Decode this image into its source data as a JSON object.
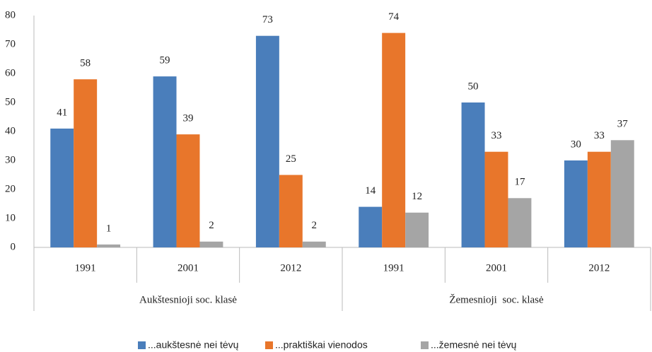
{
  "chart_data": {
    "type": "bar",
    "categories": [
      "1991",
      "2001",
      "2012",
      "1991",
      "2001",
      "2012"
    ],
    "groups": [
      {
        "label": "Aukštesnioji soc. klasė",
        "size": 3
      },
      {
        "label": "Žemesnioji  soc. klasė",
        "size": 3
      }
    ],
    "series": [
      {
        "name": "...aukštesnė nei tėvų",
        "color": "#4a7ebb",
        "values": [
          41,
          59,
          73,
          14,
          50,
          30
        ]
      },
      {
        "name": "...praktiškai vienodos",
        "color": "#e8762b",
        "values": [
          58,
          39,
          25,
          74,
          33,
          33
        ]
      },
      {
        "name": "...žemesnė nei tėvų",
        "color": "#a5a5a5",
        "values": [
          1,
          2,
          2,
          12,
          17,
          37
        ]
      }
    ],
    "ylim": [
      0,
      80
    ],
    "yticks": [
      0,
      10,
      20,
      30,
      40,
      50,
      60,
      70,
      80
    ],
    "grid": false
  }
}
